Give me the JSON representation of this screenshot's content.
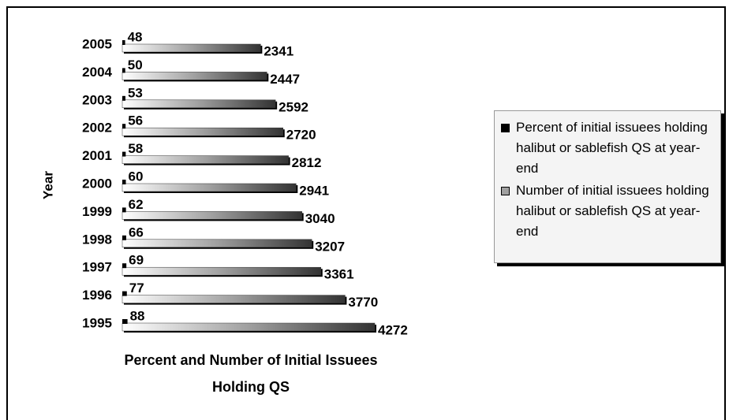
{
  "chart_data": {
    "type": "bar",
    "orientation": "horizontal",
    "title": "Percent and Number of Initial Issuees Holding QS",
    "y_label": "Year",
    "categories": [
      "2005",
      "2004",
      "2003",
      "2002",
      "2001",
      "2000",
      "1999",
      "1998",
      "1997",
      "1996",
      "1995"
    ],
    "series": [
      {
        "name": "Percent of initial issuees holding halibut or sablefish QS at year-end",
        "color": "#000000",
        "values": [
          48,
          50,
          53,
          56,
          58,
          60,
          62,
          66,
          69,
          77,
          88
        ]
      },
      {
        "name": "Number of initial issuees holding halibut or sablefish QS at year-end",
        "color": "#a0a0a0",
        "values": [
          2341,
          2447,
          2592,
          2720,
          2812,
          2941,
          3040,
          3207,
          3361,
          3770,
          4272
        ]
      }
    ],
    "legend": "right"
  }
}
